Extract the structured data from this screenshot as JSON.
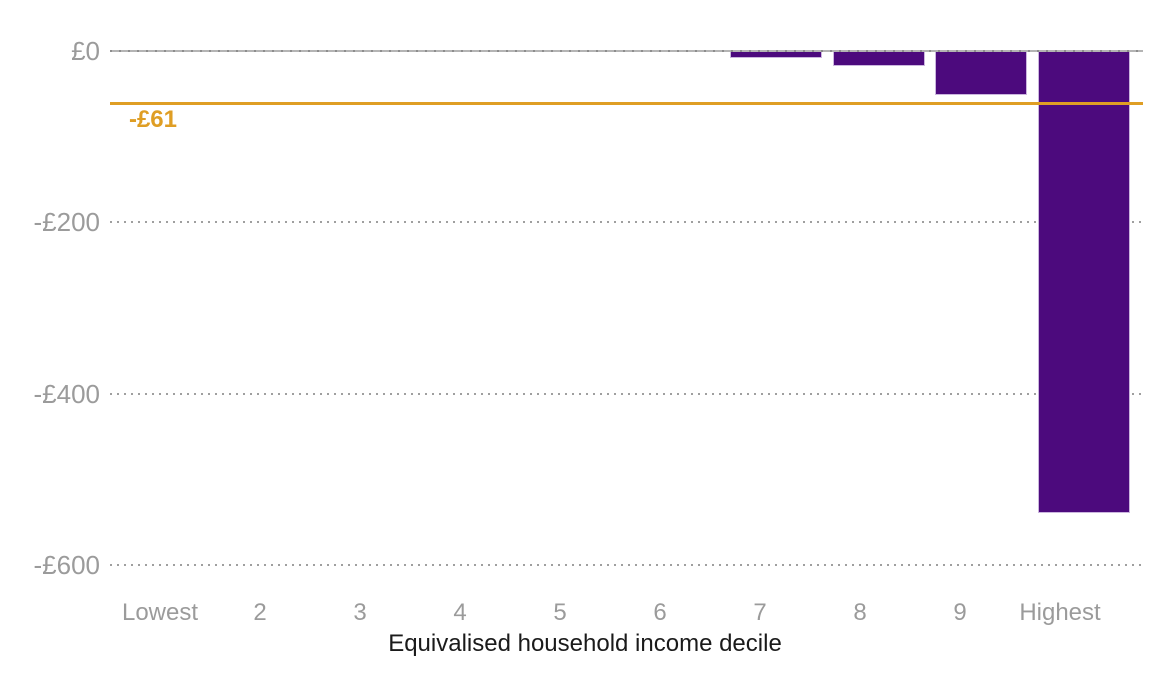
{
  "chart_data": {
    "type": "bar",
    "title": "",
    "xlabel": "Equivalised household income decile",
    "ylabel": "",
    "categories": [
      "Lowest",
      "2",
      "3",
      "4",
      "5",
      "6",
      "7",
      "8",
      "9",
      "Highest"
    ],
    "values": [
      0,
      0,
      0,
      0,
      0,
      0,
      -8,
      -18,
      -51,
      -539
    ],
    "yticks": [
      {
        "value": 0,
        "label": "£0"
      },
      {
        "value": -200,
        "label": "-£200"
      },
      {
        "value": -400,
        "label": "-£400"
      },
      {
        "value": -600,
        "label": "-£600"
      }
    ],
    "ylim": [
      -600,
      0
    ],
    "grid": "horizontal-dotted",
    "legend": "none",
    "annotation": {
      "label": "-£61",
      "value": -61
    },
    "colors": {
      "bar": "#4c0a7d",
      "bar_border": "#cbb6de",
      "annotation": "#df9e24",
      "grid_dots": "#9f9f9f",
      "zero_line": "#b4b4b4",
      "tick_text": "#9b9b9b",
      "axis_title_text": "#1a1a1a",
      "background": "#ffffff"
    }
  }
}
